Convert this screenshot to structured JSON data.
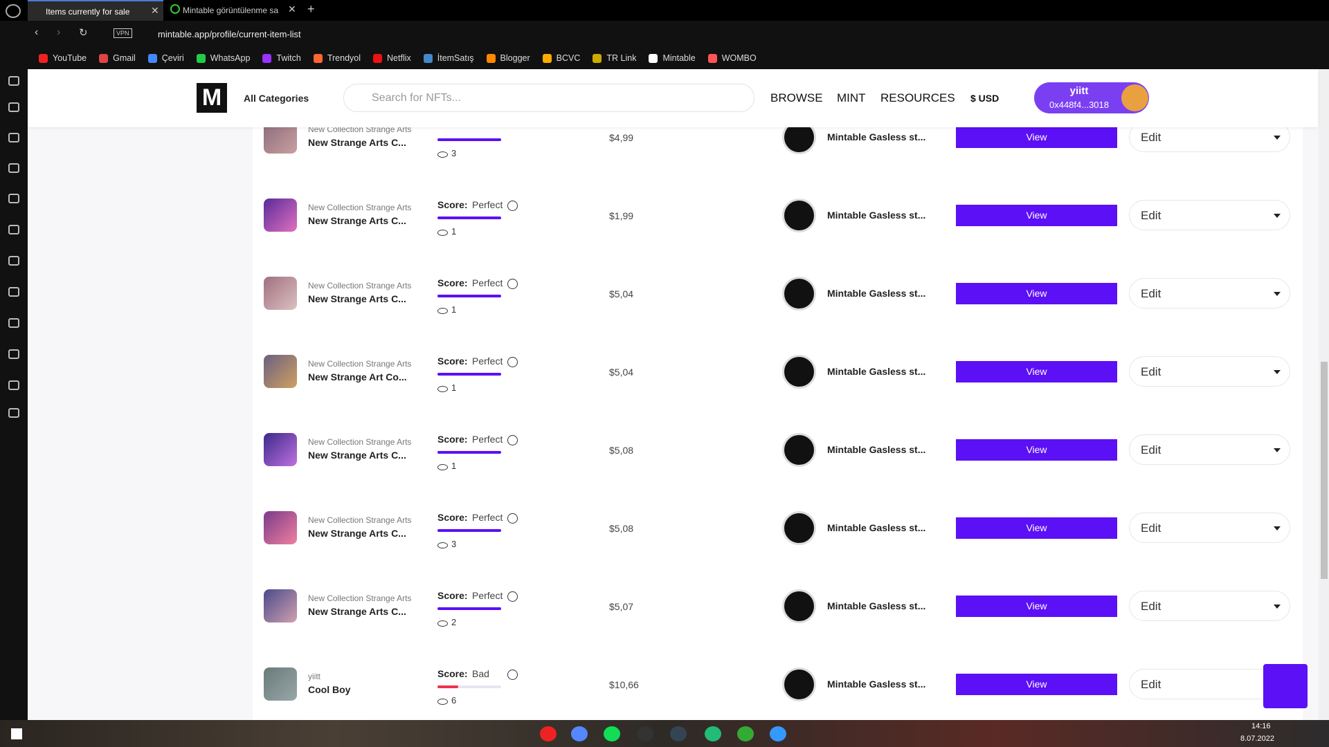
{
  "browser": {
    "tabs": [
      "Items currently for sale",
      "Mintable görüntülenme sa"
    ],
    "vpn": "VPN",
    "url": "mintable.app/profile/current-item-list",
    "bookmarks": [
      "YouTube",
      "Gmail",
      "Çeviri",
      "WhatsApp",
      "Twitch",
      "Trendyol",
      "Netflix",
      "İtemSatış",
      "Blogger",
      "BCVC",
      "TR Link",
      "Mintable",
      "WOMBO"
    ]
  },
  "header": {
    "categories": "All Categories",
    "search_placeholder": "Search for NFTs...",
    "nav": [
      "BROWSE",
      "MINT",
      "RESOURCES"
    ],
    "currency": "$ USD",
    "user": {
      "name": "yiitt",
      "address": "0x448f4...3018"
    }
  },
  "items": [
    {
      "collection": "New Collection Strange Arts",
      "name": "New Strange Arts C...",
      "views": 3,
      "price": "$4,99",
      "store": "Mintable Gasless st...",
      "view": "View",
      "edit": "Edit"
    },
    {
      "collection": "New Collection Strange Arts",
      "name": "New Strange Arts C...",
      "score_label": "Score:",
      "score": "Perfect",
      "views": 1,
      "price": "$1,99",
      "store": "Mintable Gasless st...",
      "view": "View",
      "edit": "Edit"
    },
    {
      "collection": "New Collection Strange Arts",
      "name": "New Strange Arts C...",
      "score_label": "Score:",
      "score": "Perfect",
      "views": 1,
      "price": "$5,04",
      "store": "Mintable Gasless st...",
      "view": "View",
      "edit": "Edit"
    },
    {
      "collection": "New Collection Strange Arts",
      "name": "New Strange Art Co...",
      "score_label": "Score:",
      "score": "Perfect",
      "views": 1,
      "price": "$5,04",
      "store": "Mintable Gasless st...",
      "view": "View",
      "edit": "Edit"
    },
    {
      "collection": "New Collection Strange Arts",
      "name": "New Strange Arts C...",
      "score_label": "Score:",
      "score": "Perfect",
      "views": 1,
      "price": "$5,08",
      "store": "Mintable Gasless st...",
      "view": "View",
      "edit": "Edit"
    },
    {
      "collection": "New Collection Strange Arts",
      "name": "New Strange Arts C...",
      "score_label": "Score:",
      "score": "Perfect",
      "views": 3,
      "price": "$5,08",
      "store": "Mintable Gasless st...",
      "view": "View",
      "edit": "Edit"
    },
    {
      "collection": "New Collection Strange Arts",
      "name": "New Strange Arts C...",
      "score_label": "Score:",
      "score": "Perfect",
      "views": 2,
      "price": "$5,07",
      "store": "Mintable Gasless st...",
      "view": "View",
      "edit": "Edit"
    },
    {
      "collection": "yiitt",
      "name": "Cool Boy",
      "score_label": "Score:",
      "score": "Bad",
      "views": 6,
      "price": "$10,66",
      "store": "Mintable Gasless st...",
      "view": "View",
      "edit": "Edit"
    }
  ],
  "taskbar": {
    "time": "14:16",
    "date": "8.07.2022"
  }
}
